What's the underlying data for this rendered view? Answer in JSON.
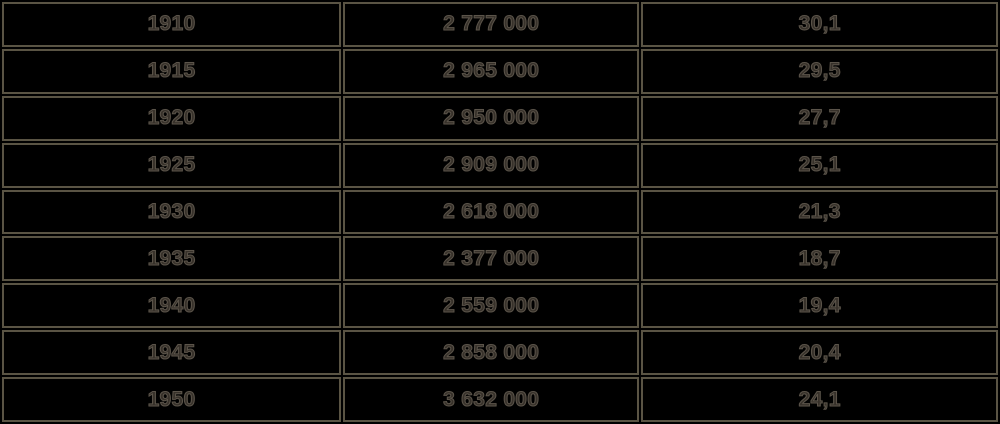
{
  "colors": {
    "background": "#000000",
    "border": "#5a5444",
    "text_fill": "#37312a",
    "text_outline": "#5b544a"
  },
  "chart_data": {
    "type": "table",
    "headers": [],
    "columns_semantic": [
      "year",
      "population",
      "rate_per_thousand"
    ],
    "rows": [
      [
        "1910",
        "2 777 000",
        "30,1"
      ],
      [
        "1915",
        "2 965 000",
        "29,5"
      ],
      [
        "1920",
        "2 950 000",
        "27,7"
      ],
      [
        "1925",
        "2 909 000",
        "25,1"
      ],
      [
        "1930",
        "2 618 000",
        "21,3"
      ],
      [
        "1935",
        "2 377 000",
        "18,7"
      ],
      [
        "1940",
        "2 559 000",
        "19,4"
      ],
      [
        "1945",
        "2 858 000",
        "20,4"
      ],
      [
        "1950",
        "3 632 000",
        "24,1"
      ]
    ]
  }
}
